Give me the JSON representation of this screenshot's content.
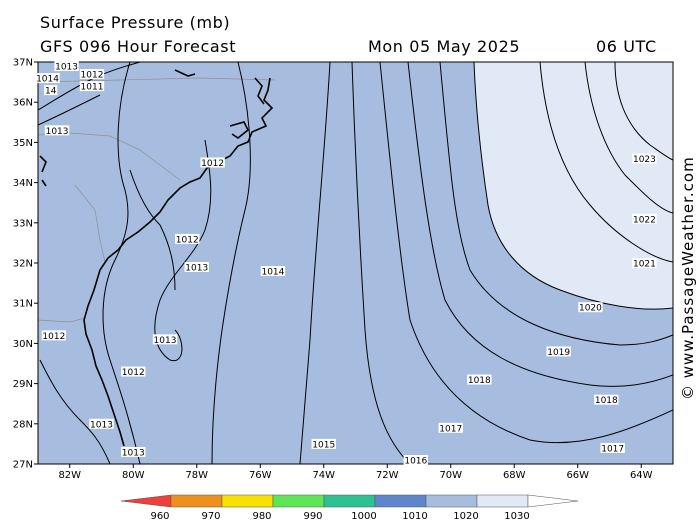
{
  "header": {
    "title": "Surface Pressure (mb)",
    "subtitle": "GFS 096 Hour Forecast",
    "date": "Mon 05 May 2025",
    "time": "06 UTC"
  },
  "credit": "© www.PassageWeather.com",
  "colors": {
    "ocean_fill": "#a6bde0",
    "land_fill": "#a6bde0",
    "high_fill": "#e2e9f6",
    "coast": "#000000",
    "state_lines": "#909090",
    "contour": "#000000"
  },
  "map": {
    "lon_range": [
      -83,
      -63
    ],
    "lat_range": [
      27,
      37
    ],
    "lat_labels": [
      "37N",
      "36N",
      "35N",
      "34N",
      "33N",
      "32N",
      "31N",
      "30N",
      "29N",
      "28N",
      "27N"
    ],
    "lon_labels": [
      "82W",
      "80W",
      "78W",
      "76W",
      "74W",
      "72W",
      "70W",
      "68W",
      "66W",
      "64W"
    ],
    "isobar_labels": [
      {
        "text": "1013",
        "lon": -82.1,
        "lat": 36.9
      },
      {
        "text": "1012",
        "lon": -81.3,
        "lat": 36.7
      },
      {
        "text": "1014",
        "lon": -82.7,
        "lat": 36.6
      },
      {
        "text": "14",
        "lon": -82.6,
        "lat": 36.3
      },
      {
        "text": "1011",
        "lon": -81.3,
        "lat": 36.4
      },
      {
        "text": "1013",
        "lon": -82.4,
        "lat": 35.3
      },
      {
        "text": "1012",
        "lon": -77.5,
        "lat": 34.5
      },
      {
        "text": "1012",
        "lon": -78.3,
        "lat": 32.6
      },
      {
        "text": "1013",
        "lon": -78.0,
        "lat": 31.9
      },
      {
        "text": "1014",
        "lon": -75.6,
        "lat": 31.8
      },
      {
        "text": "1012",
        "lon": -82.5,
        "lat": 30.2
      },
      {
        "text": "1013",
        "lon": -79.0,
        "lat": 30.1
      },
      {
        "text": "1012",
        "lon": -80.0,
        "lat": 29.3
      },
      {
        "text": "1013",
        "lon": -81.0,
        "lat": 28.0
      },
      {
        "text": "1013",
        "lon": -80.0,
        "lat": 27.3
      },
      {
        "text": "1015",
        "lon": -74.0,
        "lat": 27.5
      },
      {
        "text": "1016",
        "lon": -71.1,
        "lat": 27.1
      },
      {
        "text": "1017",
        "lon": -70.0,
        "lat": 27.9
      },
      {
        "text": "1018",
        "lon": -69.1,
        "lat": 29.1
      },
      {
        "text": "1019",
        "lon": -66.6,
        "lat": 29.8
      },
      {
        "text": "1020",
        "lon": -65.6,
        "lat": 30.9
      },
      {
        "text": "1021",
        "lon": -63.9,
        "lat": 32.0
      },
      {
        "text": "1022",
        "lon": -63.9,
        "lat": 33.1
      },
      {
        "text": "1023",
        "lon": -63.9,
        "lat": 34.6
      },
      {
        "text": "1018",
        "lon": -65.1,
        "lat": 28.6
      },
      {
        "text": "1017",
        "lon": -64.9,
        "lat": 27.4
      }
    ]
  },
  "colorbar": {
    "ticks": [
      "960",
      "970",
      "980",
      "990",
      "1000",
      "1010",
      "1020",
      "1030"
    ],
    "colors": [
      "#ef3f3a",
      "#f0901c",
      "#f8e100",
      "#5ee656",
      "#2ec191",
      "#5f86cc",
      "#a6bde0",
      "#e2e9f6"
    ]
  }
}
